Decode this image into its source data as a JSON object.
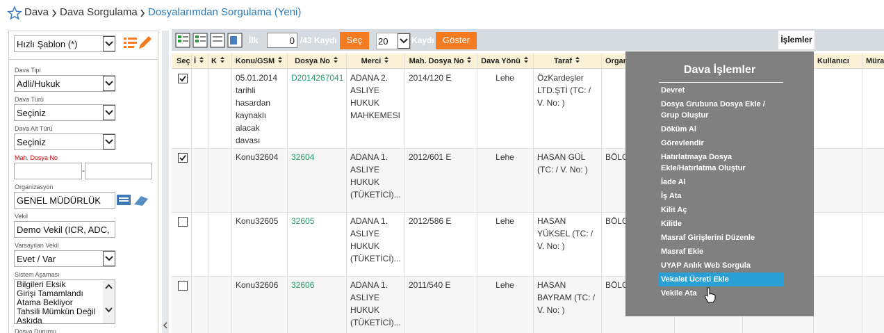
{
  "breadcrumb": [
    "Dava",
    "Dava Sorgulama",
    "Dosyalarımdan Sorgulama (Yeni)"
  ],
  "sidebar": {
    "quick_template": "Hızlı Şablon (*)",
    "case_type": {
      "label": "Dava Tipi",
      "value": "Adli/Hukuk"
    },
    "case_kind": {
      "label": "Dava Türü",
      "value": "Seçiniz"
    },
    "case_subkind": {
      "label": "Dava Alt Türü",
      "value": "Seçiniz"
    },
    "court_file_no": {
      "label": "Mah. Dosya No",
      "separator": "-"
    },
    "organization": {
      "label": "Organizasyon",
      "value": "GENEL MÜDÜRLÜK"
    },
    "attorney": {
      "label": "Vekil",
      "value": "Demo Vekil (ICR, ADC,"
    },
    "default_attorney": {
      "label": "Varsayılan Vekil",
      "value": "Evet / Var"
    },
    "system_stage": {
      "label": "Sistem Aşaması",
      "options": [
        "Bilgileri Eksik",
        "Girişi Tamamlandı",
        "Atama Bekliyor",
        "Tahsili Mümkün Değil",
        "Askıda"
      ]
    },
    "file_status": {
      "label": "Dosya Durumu"
    }
  },
  "toolbar": {
    "first": "İlk",
    "start": "0",
    "total": "/43 Kaydı",
    "select": "Seç",
    "page_size": "20",
    "records": "Kaydı",
    "show": "Göster",
    "operations": "İşlemler"
  },
  "table": {
    "columns": [
      "Seç",
      "İ",
      "K",
      "Konu/GSM",
      "Dosya No",
      "Merci",
      "Mah. Dosya No",
      "Dava Yönü",
      "Taraf",
      "Organ",
      "Kullanıcı",
      "Müra"
    ],
    "rows": [
      {
        "checked": true,
        "subject": "05.01.2014 tarihli hasardan kaynaklı alacak davası",
        "file_no": "D2014267041",
        "court": "ADANA 2. ASLIYE HUKUK MAHKEMESI",
        "court_file_no": "2014/120 E",
        "direction": "Lehe",
        "party": "ÖzKardeşler LTD.ŞTİ (TC: / V. No: )"
      },
      {
        "checked": true,
        "subject": "Konu32604",
        "file_no": "32604",
        "court": "ADANA 1. ASLIYE HUKUK (TÜKETİCİ)...",
        "court_file_no": "2012/601 E",
        "direction": "Lehe",
        "party": "HASAN GÜL (TC: / V. No: )",
        "organization": "BÖLG"
      },
      {
        "checked": false,
        "subject": "Konu32605",
        "file_no": "32605",
        "court": "ADANA 1. ASLIYE HUKUK (TÜKETİCİ)...",
        "court_file_no": "2012/586 E",
        "direction": "Lehe",
        "party": "HASAN YÜKSEL (TC: / V. No: )",
        "organization": "BÖLG"
      },
      {
        "checked": false,
        "subject": "Konu32606",
        "file_no": "32606",
        "court": "ADANA 1. ASLIYE HUKUK (TÜKETİCİ)...",
        "court_file_no": "2011/540 E",
        "direction": "Lehe",
        "party": "HASAN BAYRAM (TC: / V. No: )",
        "organization": "BÖLG"
      }
    ]
  },
  "menu": {
    "title": "Dava İşlemler",
    "items": [
      {
        "label": "Devret"
      },
      {
        "label": "Dosya Grubuna Dosya Ekle / Grup Oluştur"
      },
      {
        "label": "Döküm Al"
      },
      {
        "label": "Görevlendir"
      },
      {
        "label": "Hatırlatmaya Dosya Ekle/Hatırlatma Oluştur"
      },
      {
        "label": "İade Al"
      },
      {
        "label": "İş Ata"
      },
      {
        "label": "Kilit Aç"
      },
      {
        "label": "Kilitle"
      },
      {
        "label": "Masraf Girişlerini Düzenle"
      },
      {
        "label": "Masraf Ekle"
      },
      {
        "label": "UYAP Anlık Web Sorgula"
      },
      {
        "label": "Vekalet Ücreti Ekle",
        "highlighted": true
      },
      {
        "label": "Vekile Ata"
      }
    ]
  }
}
